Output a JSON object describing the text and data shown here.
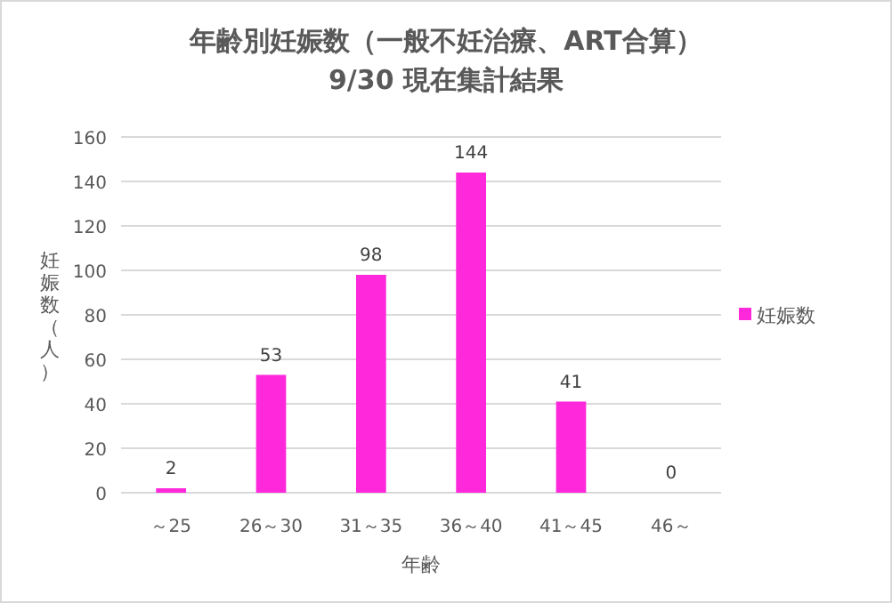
{
  "chart_data": {
    "type": "bar",
    "title": "年齢別妊娠数（一般不妊治療、ART合算）",
    "subtitle": "9/30 現在集計結果",
    "xlabel": "年齢",
    "ylabel": "妊娠数（人）",
    "categories": [
      "～25",
      "26～30",
      "31～35",
      "36～40",
      "41～45",
      "46～"
    ],
    "series": [
      {
        "name": "妊娠数",
        "color": "#ff28da",
        "values": [
          2,
          53,
          98,
          144,
          41,
          0
        ]
      }
    ],
    "ylim": [
      0,
      160
    ],
    "yticks": [
      0,
      20,
      40,
      60,
      80,
      100,
      120,
      140,
      160
    ],
    "grid": "y",
    "legend": "right",
    "data_labels": true
  }
}
